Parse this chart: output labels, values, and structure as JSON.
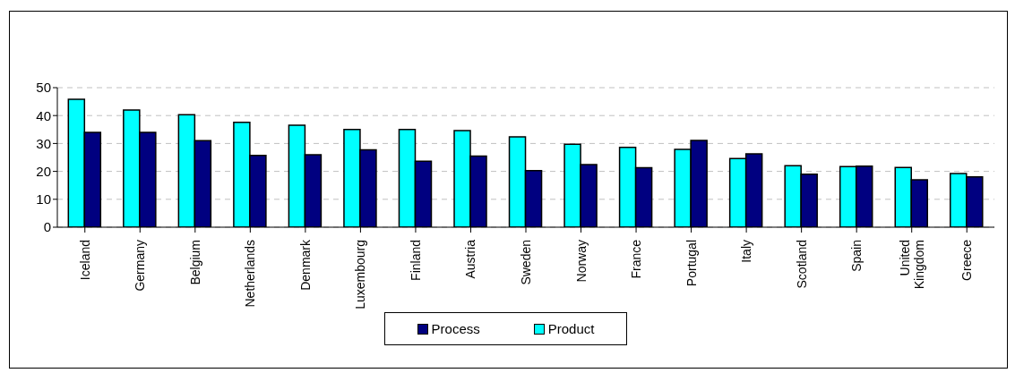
{
  "chart_data": {
    "type": "bar",
    "categories": [
      "Iceland",
      "Germany",
      "Belgium",
      "Netherlands",
      "Denmark",
      "Luxembourg",
      "Finland",
      "Austria",
      "Sweden",
      "Norway",
      "France",
      "Portugal",
      "Italy",
      "Scotland",
      "Spain",
      "United Kingdom",
      "Greece"
    ],
    "series": [
      {
        "name": "Product",
        "color": "#00ffff",
        "values": [
          45.8,
          42,
          40.3,
          37.6,
          36.5,
          35,
          35,
          34.6,
          32.4,
          29.7,
          28.6,
          27.9,
          24.6,
          22,
          21.7,
          21.4,
          19.2
        ]
      },
      {
        "name": "Process",
        "color": "#000080",
        "values": [
          34,
          34,
          31,
          25.7,
          26,
          27.7,
          23.6,
          25.5,
          20.3,
          22.4,
          21.3,
          31.1,
          26.3,
          19,
          21.9,
          17,
          18
        ]
      }
    ],
    "ylim": [
      0,
      50
    ],
    "yticks": [
      0,
      10,
      20,
      30,
      40,
      50
    ],
    "grid": "y",
    "legend": "bottom"
  }
}
